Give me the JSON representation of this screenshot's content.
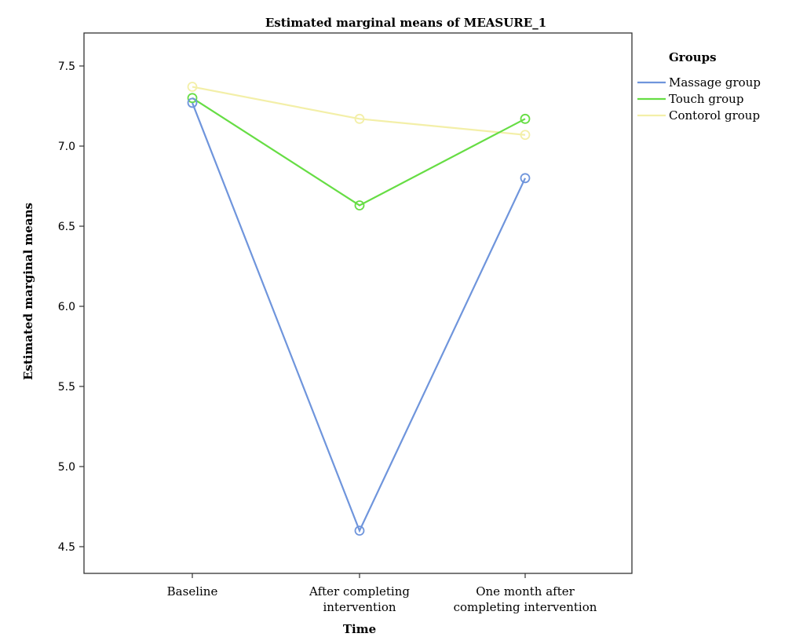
{
  "chart_data": {
    "type": "line",
    "title": "Estimated marginal means of MEASURE_1",
    "xlabel": "Time",
    "ylabel": "Estimated marginal means",
    "categories": [
      [
        "Baseline"
      ],
      [
        "After completing",
        "intervention"
      ],
      [
        "One month after",
        "completing intervention"
      ]
    ],
    "ylim": [
      4.4,
      7.65
    ],
    "yticks": [
      "4.5",
      "5.0",
      "5.5",
      "6.0",
      "6.5",
      "7.0",
      "7.5"
    ],
    "grid": false,
    "legend": {
      "title": "Groups",
      "placement": "right"
    },
    "series": [
      {
        "name": "Massage group",
        "color": "#6f95dc",
        "values": [
          7.27,
          4.6,
          6.8
        ]
      },
      {
        "name": "Touch group",
        "color": "#66dd44",
        "values": [
          7.3,
          6.63,
          7.17
        ]
      },
      {
        "name": "Contorol group",
        "color": "#f3efa8",
        "values": [
          7.37,
          7.17,
          7.07
        ]
      }
    ]
  }
}
